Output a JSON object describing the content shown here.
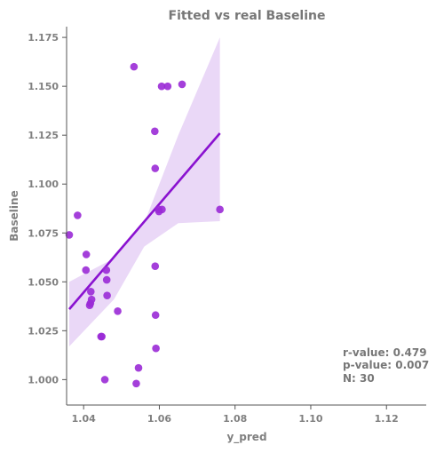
{
  "chart_data": {
    "type": "scatter",
    "title": "Fitted vs real Baseline",
    "xlabel": "y_pred",
    "ylabel": "Baseline",
    "xlim": [
      1.0355,
      1.1305
    ],
    "ylim": [
      0.987,
      1.1805
    ],
    "xticks": [
      1.04,
      1.06,
      1.08,
      1.1,
      1.12
    ],
    "xtick_labels": [
      "1.04",
      "1.06",
      "1.08",
      "1.10",
      "1.12"
    ],
    "yticks": [
      1.0,
      1.025,
      1.05,
      1.075,
      1.1,
      1.125,
      1.15,
      1.175
    ],
    "ytick_labels": [
      "1.000",
      "1.025",
      "1.050",
      "1.075",
      "1.100",
      "1.125",
      "1.150",
      "1.175"
    ],
    "grid": false,
    "points": [
      {
        "x": 1.0362,
        "y": 1.074
      },
      {
        "x": 1.0384,
        "y": 1.084
      },
      {
        "x": 1.0406,
        "y": 1.056
      },
      {
        "x": 1.0407,
        "y": 1.064
      },
      {
        "x": 1.0416,
        "y": 1.038
      },
      {
        "x": 1.0418,
        "y": 1.039
      },
      {
        "x": 1.0419,
        "y": 1.045
      },
      {
        "x": 1.0421,
        "y": 1.041
      },
      {
        "x": 1.0446,
        "y": 1.022
      },
      {
        "x": 1.0448,
        "y": 1.022
      },
      {
        "x": 1.0456,
        "y": 1.0
      },
      {
        "x": 1.046,
        "y": 1.056
      },
      {
        "x": 1.0461,
        "y": 1.051
      },
      {
        "x": 1.0462,
        "y": 1.043
      },
      {
        "x": 1.049,
        "y": 1.035
      },
      {
        "x": 1.0533,
        "y": 1.16
      },
      {
        "x": 1.0539,
        "y": 0.998
      },
      {
        "x": 1.0545,
        "y": 1.006
      },
      {
        "x": 1.0588,
        "y": 1.127
      },
      {
        "x": 1.0589,
        "y": 1.108
      },
      {
        "x": 1.0589,
        "y": 1.058
      },
      {
        "x": 1.059,
        "y": 1.033
      },
      {
        "x": 1.0591,
        "y": 1.016
      },
      {
        "x": 1.0598,
        "y": 1.087
      },
      {
        "x": 1.0599,
        "y": 1.086
      },
      {
        "x": 1.0606,
        "y": 1.15
      },
      {
        "x": 1.0607,
        "y": 1.087
      },
      {
        "x": 1.0622,
        "y": 1.15
      },
      {
        "x": 1.066,
        "y": 1.151
      },
      {
        "x": 1.076,
        "y": 1.087
      }
    ],
    "regression": {
      "x_start": 1.0362,
      "y_start": 1.036,
      "x_end": 1.076,
      "y_end": 1.126
    },
    "confidence_band": {
      "x": [
        1.0362,
        1.048,
        1.056,
        1.065,
        1.076
      ],
      "upper": [
        1.05,
        1.062,
        1.08,
        1.125,
        1.175
      ],
      "lower": [
        1.017,
        1.041,
        1.068,
        1.08,
        1.081
      ]
    },
    "colors": {
      "points": "#9a2ad6",
      "line": "#8a12d0",
      "band": "#e8d4f6"
    },
    "annotation": {
      "lines": [
        "r-value: 0.479",
        "p-value: 0.007",
        "N: 30"
      ]
    }
  }
}
